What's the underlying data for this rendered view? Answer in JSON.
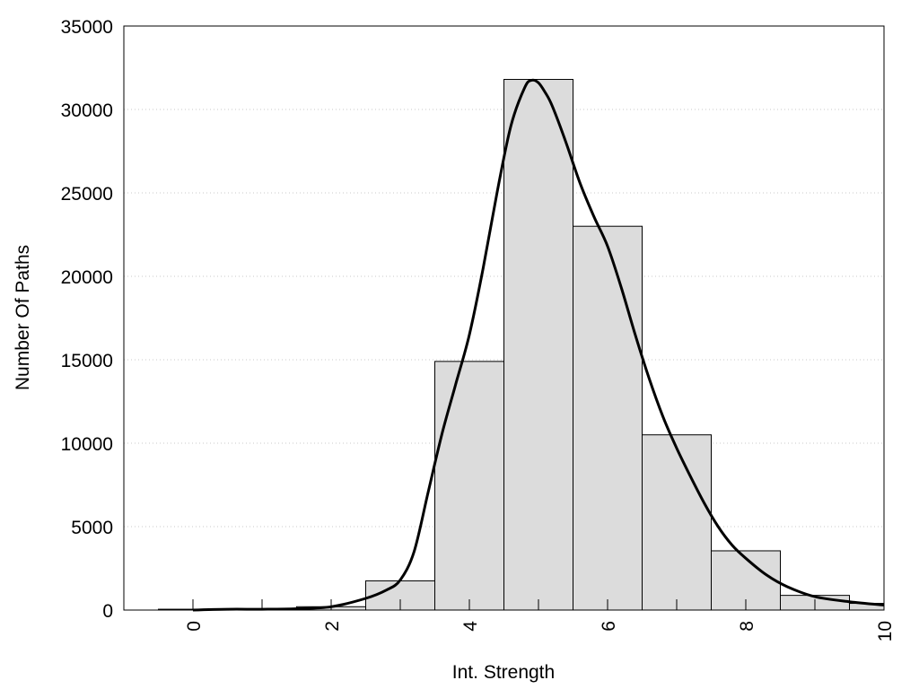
{
  "chart_data": {
    "type": "bar",
    "xlabel": "Int. Strength",
    "ylabel": "Number Of Paths",
    "xlim": [
      -1,
      10
    ],
    "ylim": [
      0,
      35000
    ],
    "x_ticks": [
      0,
      2,
      4,
      6,
      8,
      10
    ],
    "x_tick_labels": [
      "0",
      "2",
      "4",
      "6",
      "8",
      "10"
    ],
    "y_ticks": [
      0,
      5000,
      10000,
      15000,
      20000,
      25000,
      30000,
      35000
    ],
    "y_tick_labels": [
      "0",
      "5000",
      "10000",
      "15000",
      "20000",
      "25000",
      "30000",
      "35000"
    ],
    "grid": "horizontal-dotted",
    "bar_color": "#dcdcdc",
    "line_color": "#000000",
    "bars": [
      {
        "x": 0,
        "value": 50
      },
      {
        "x": 1,
        "value": 60
      },
      {
        "x": 2,
        "value": 200
      },
      {
        "x": 3,
        "value": 1750
      },
      {
        "x": 4,
        "value": 14900
      },
      {
        "x": 5,
        "value": 31800
      },
      {
        "x": 6,
        "value": 23000
      },
      {
        "x": 7,
        "value": 10500
      },
      {
        "x": 8,
        "value": 3550
      },
      {
        "x": 9,
        "value": 880
      },
      {
        "x": 10,
        "value": 400
      }
    ],
    "density_curve": {
      "x": [
        0,
        0.5,
        1,
        1.5,
        2,
        2.5,
        2.8,
        3,
        3.2,
        3.4,
        3.6,
        3.8,
        4,
        4.2,
        4.4,
        4.6,
        4.8,
        4.9,
        5,
        5.1,
        5.2,
        5.4,
        5.6,
        5.8,
        6,
        6.2,
        6.4,
        6.6,
        6.8,
        7,
        7.2,
        7.4,
        7.6,
        7.8,
        8,
        8.3,
        8.6,
        9,
        9.5,
        10
      ],
      "y": [
        0,
        50,
        50,
        80,
        200,
        700,
        1200,
        1800,
        3500,
        7000,
        10500,
        13500,
        16500,
        20500,
        25000,
        29000,
        31300,
        31750,
        31600,
        31000,
        30200,
        28000,
        25600,
        23600,
        21800,
        19300,
        16500,
        13900,
        11600,
        9700,
        8000,
        6400,
        5000,
        3900,
        3100,
        2100,
        1400,
        800,
        500,
        300
      ]
    }
  }
}
